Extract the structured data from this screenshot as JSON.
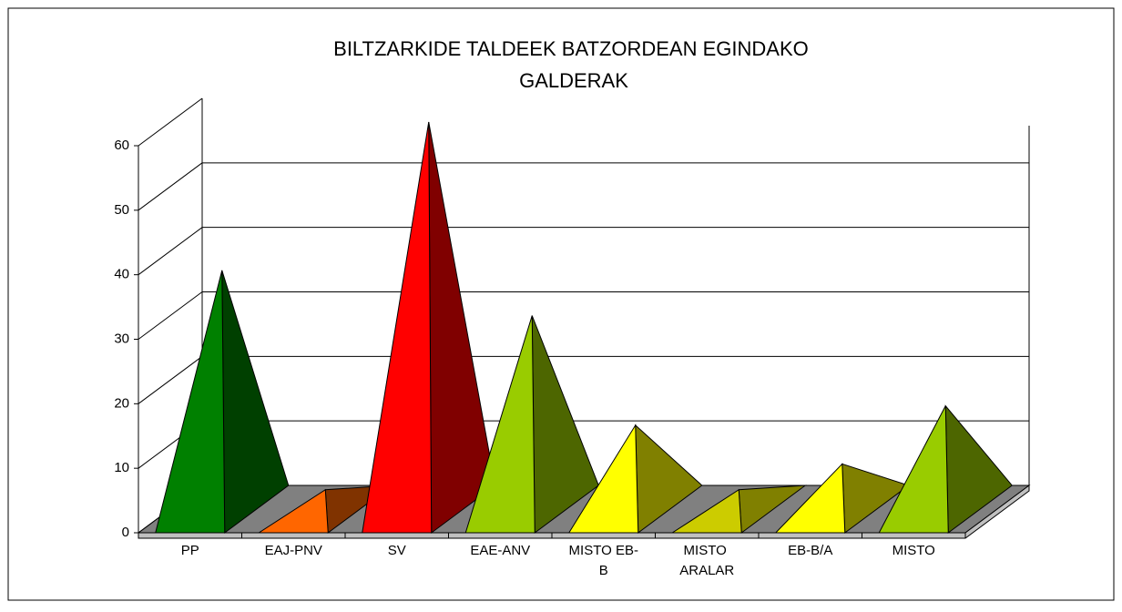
{
  "chart_data": {
    "type": "pyramid3d",
    "title": "BILTZARKIDE TALDEEK BATZORDEAN EGINDAKO GALDERAK",
    "categories": [
      "PP",
      "EAJ-PNV",
      "SV",
      "EAE-ANV",
      "MISTO EB-B",
      "MISTO ARALAR",
      "EB-B/A",
      "MISTO"
    ],
    "values": [
      37,
      3,
      60,
      30,
      13,
      3,
      7,
      16
    ],
    "colors": [
      "#008000",
      "#ff6600",
      "#ff0000",
      "#99cc00",
      "#ffff00",
      "#cccc00",
      "#ffff00",
      "#99cc00"
    ],
    "side_colors": [
      "#004000",
      "#803300",
      "#800000",
      "#4d6600",
      "#808000",
      "#808000",
      "#808000",
      "#4d6600"
    ],
    "ylim": [
      0,
      60
    ],
    "yticks": [
      0,
      10,
      20,
      30,
      40,
      50,
      60
    ],
    "grid": true
  }
}
